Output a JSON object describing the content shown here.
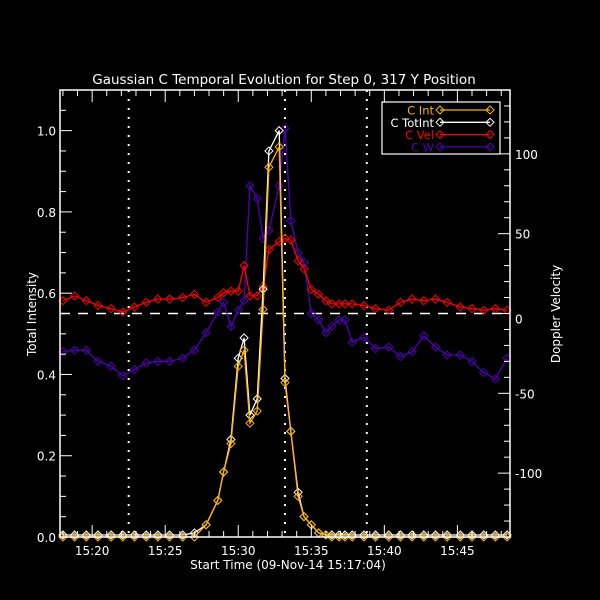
{
  "chart_data": {
    "type": "line",
    "title": "Gaussian C Temporal Evolution for Step 0, 317 Y Position",
    "xlabel": "Start Time (09-Nov-14 15:17:04)",
    "ylabel_left": "Total Intensity",
    "ylabel_right": "Doppler Velocity",
    "x_tick_labels": [
      "15:20",
      "15:25",
      "15:30",
      "15:35",
      "15:40",
      "15:45"
    ],
    "x_tick_minutes": [
      20,
      25,
      30,
      35,
      40,
      45
    ],
    "xlim_minutes": [
      17.8,
      48.6
    ],
    "y_left_ticks": [
      "0.0",
      "0.2",
      "0.4",
      "0.6",
      "0.8",
      "1.0"
    ],
    "y_left_tick_values": [
      0.0,
      0.2,
      0.4,
      0.6,
      0.8,
      1.0
    ],
    "ylim_left": [
      0.0,
      1.1
    ],
    "y_right_ticks": [
      "-100",
      "-50",
      "0",
      "50",
      "100"
    ],
    "y_right_tick_values": [
      -100,
      -50,
      0,
      50,
      100
    ],
    "ylim_right": [
      -140,
      140
    ],
    "grid": false,
    "legend_position": "upper right",
    "vertical_reference_minutes": [
      22.5,
      33.2,
      38.8
    ],
    "horizontal_reference_right_axis": 0,
    "series": [
      {
        "name": "C Int",
        "axis": "left",
        "color": "#ffb000",
        "x": [
          18.0,
          18.8,
          19.6,
          20.4,
          21.3,
          22.1,
          22.9,
          23.7,
          24.5,
          25.3,
          26.2,
          27.0,
          27.8,
          28.6,
          29.0,
          29.5,
          30.0,
          30.4,
          30.8,
          31.3,
          31.7,
          32.1,
          32.8,
          33.2,
          33.6,
          34.1,
          34.5,
          35.0,
          35.5,
          36.0,
          36.4,
          36.9,
          37.3,
          37.8,
          38.6,
          39.4,
          40.3,
          41.1,
          41.9,
          42.7,
          43.5,
          44.3,
          45.2,
          46.0,
          46.8,
          47.6,
          48.4
        ],
        "values": [
          0.0,
          0.0,
          0.0,
          0.0,
          0.0,
          0.0,
          0.0,
          0.0,
          0.0,
          0.0,
          0.0,
          0.0,
          0.03,
          0.09,
          0.16,
          0.23,
          0.42,
          0.46,
          0.28,
          0.31,
          0.56,
          0.91,
          0.96,
          0.38,
          0.26,
          0.1,
          0.05,
          0.03,
          0.01,
          0.005,
          0.0,
          0.0,
          0.0,
          0.0,
          0.0,
          0.0,
          0.0,
          0.0,
          0.0,
          0.0,
          0.0,
          0.0,
          0.0,
          0.0,
          0.0,
          0.0,
          0.0
        ]
      },
      {
        "name": "C TotInt",
        "axis": "left",
        "color": "#ffffff",
        "x": [
          18.0,
          18.8,
          19.6,
          20.4,
          21.3,
          22.1,
          22.9,
          23.7,
          24.5,
          25.3,
          26.2,
          27.0,
          27.8,
          28.6,
          29.0,
          29.5,
          30.0,
          30.4,
          30.8,
          31.3,
          31.7,
          32.1,
          32.8,
          33.2,
          33.6,
          34.1,
          34.5,
          35.0,
          35.5,
          36.0,
          36.4,
          36.9,
          37.3,
          37.8,
          38.6,
          39.4,
          40.3,
          41.1,
          41.9,
          42.7,
          43.5,
          44.3,
          45.2,
          46.0,
          46.8,
          47.6,
          48.4
        ],
        "values": [
          0.005,
          0.005,
          0.005,
          0.005,
          0.005,
          0.005,
          0.005,
          0.005,
          0.005,
          0.005,
          0.005,
          0.01,
          0.03,
          0.09,
          0.16,
          0.24,
          0.44,
          0.49,
          0.3,
          0.34,
          0.61,
          0.95,
          1.0,
          0.39,
          0.26,
          0.11,
          0.05,
          0.03,
          0.01,
          0.005,
          0.005,
          0.005,
          0.005,
          0.005,
          0.005,
          0.005,
          0.005,
          0.005,
          0.005,
          0.005,
          0.005,
          0.005,
          0.005,
          0.005,
          0.005,
          0.005,
          0.005
        ]
      },
      {
        "name": "C Vel",
        "axis": "right",
        "color": "#ff0000",
        "x": [
          18.0,
          18.8,
          19.6,
          20.4,
          21.3,
          22.1,
          22.9,
          23.7,
          24.5,
          25.3,
          26.2,
          27.0,
          27.8,
          28.6,
          29.0,
          29.5,
          30.0,
          30.4,
          30.8,
          31.3,
          31.7,
          32.1,
          32.8,
          33.2,
          33.6,
          34.1,
          34.5,
          35.0,
          35.5,
          36.0,
          36.4,
          36.9,
          37.3,
          37.8,
          38.6,
          39.4,
          40.3,
          41.1,
          41.9,
          42.7,
          43.5,
          44.3,
          45.2,
          46.0,
          46.8,
          47.6,
          48.4
        ],
        "values": [
          8,
          11,
          8,
          5,
          3,
          1,
          4,
          7,
          9,
          9,
          10,
          12,
          7,
          10,
          13,
          14,
          14,
          30,
          11,
          11,
          17,
          40,
          45,
          47,
          46,
          33,
          28,
          15,
          12,
          8,
          6,
          6,
          6,
          6,
          5,
          3,
          2,
          7,
          9,
          8,
          9,
          7,
          4,
          3,
          2,
          3,
          2
        ]
      },
      {
        "name": "C W",
        "axis": "right",
        "color": "#5000b4",
        "x": [
          18.0,
          18.8,
          19.6,
          20.4,
          21.3,
          22.1,
          22.9,
          23.7,
          24.5,
          25.3,
          26.2,
          27.0,
          27.8,
          28.6,
          29.0,
          29.5,
          30.0,
          30.4,
          30.8,
          31.3,
          31.7,
          32.1,
          32.8,
          33.2,
          33.6,
          34.1,
          34.5,
          35.0,
          35.5,
          36.0,
          36.4,
          36.9,
          37.3,
          37.8,
          38.6,
          39.4,
          40.3,
          41.1,
          41.9,
          42.7,
          43.5,
          44.3,
          45.2,
          46.0,
          46.8,
          47.6,
          48.4
        ],
        "values": [
          -24,
          -23,
          -23,
          -30,
          -33,
          -39,
          -35,
          -31,
          -30,
          -30,
          -28,
          -23,
          -12,
          1,
          7,
          -8,
          2,
          8,
          80,
          72,
          47,
          52,
          80,
          116,
          58,
          38,
          32,
          0,
          -4,
          -12,
          -8,
          -4,
          -4,
          -18,
          -15,
          -22,
          -21,
          -27,
          -24,
          -14,
          -21,
          -26,
          -26,
          -30,
          -37,
          -41,
          -28
        ]
      }
    ]
  },
  "legend": {
    "items": [
      {
        "label": "C Int",
        "color": "#ffb000"
      },
      {
        "label": "C TotInt",
        "color": "#ffffff"
      },
      {
        "label": "C Vel",
        "color": "#ff0000"
      },
      {
        "label": "C W",
        "color": "#5000b4"
      }
    ]
  }
}
